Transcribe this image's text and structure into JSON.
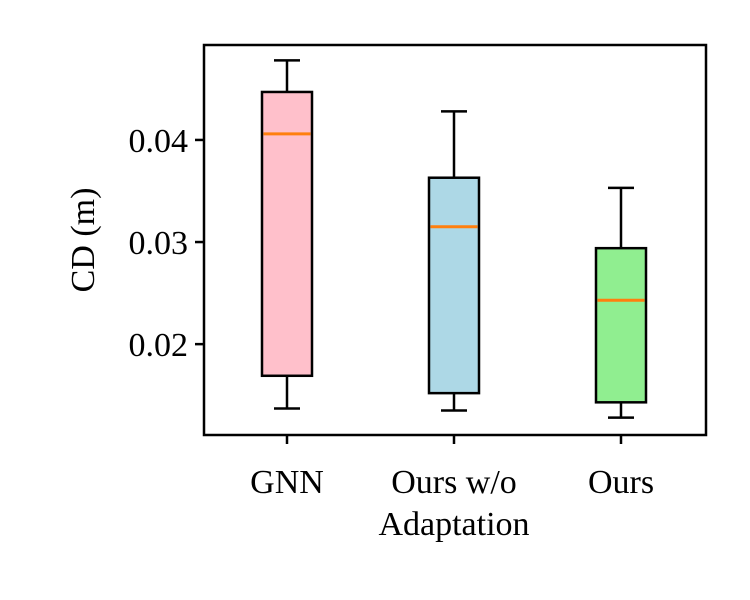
{
  "chart_data": {
    "type": "box",
    "ylabel": "CD (m)",
    "xlabel": "",
    "ylim": [
      0.0111,
      0.0493
    ],
    "yticks": [
      {
        "value": 0.02,
        "label": "0.02"
      },
      {
        "value": 0.03,
        "label": "0.03"
      },
      {
        "value": 0.04,
        "label": "0.04"
      }
    ],
    "categories": [
      {
        "lines": [
          "GNN"
        ]
      },
      {
        "lines": [
          "Ours w/o",
          "Adaptation"
        ]
      },
      {
        "lines": [
          "Ours"
        ]
      }
    ],
    "boxes": [
      {
        "whisker_low": 0.0137,
        "q1": 0.0169,
        "median": 0.0406,
        "q3": 0.0447,
        "whisker_high": 0.0478,
        "fill": "#ffc0cb"
      },
      {
        "whisker_low": 0.0135,
        "q1": 0.0152,
        "median": 0.0315,
        "q3": 0.0363,
        "whisker_high": 0.0428,
        "fill": "#add8e6"
      },
      {
        "whisker_low": 0.0128,
        "q1": 0.0143,
        "median": 0.0243,
        "q3": 0.0294,
        "whisker_high": 0.0353,
        "fill": "#90ee90"
      }
    ],
    "median_color": "#ff7f0e",
    "grid": false,
    "legend": "none"
  }
}
